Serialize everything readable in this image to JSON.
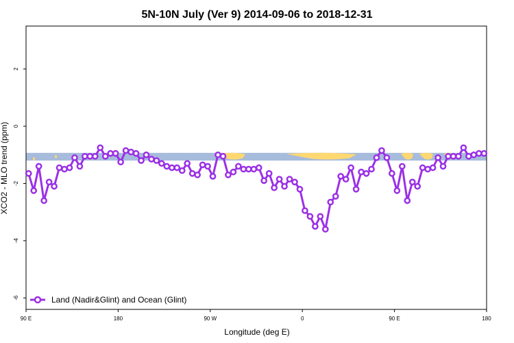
{
  "chart_data": {
    "type": "line",
    "title": "5N-10N July (Ver 9)   2014-09-06 to 2018-12-31",
    "xlabel": "Longitude (deg E)",
    "ylabel": "XCO2 - MLO trend (ppm)",
    "xlim": [
      90,
      450
    ],
    "ylim": [
      -6.4,
      3.5
    ],
    "x_ticks": [
      {
        "value": 90,
        "label": "90 E"
      },
      {
        "value": 162,
        "label": "180"
      },
      {
        "value": 234,
        "label": "90 W"
      },
      {
        "value": 306,
        "label": "0"
      },
      {
        "value": 378,
        "label": "90 E"
      },
      {
        "value": 450,
        "label": "180"
      }
    ],
    "y_ticks": [
      {
        "value": 2,
        "label": "2"
      },
      {
        "value": 0,
        "label": "0"
      },
      {
        "value": -2,
        "label": "-2"
      },
      {
        "value": -4,
        "label": "-4"
      },
      {
        "value": -6,
        "label": "-6"
      }
    ],
    "grid": false,
    "legend_position": "bottom-left",
    "land_strip": {
      "y_range": [
        -1.2,
        -0.93
      ],
      "ocean_color": "#a7bcdc",
      "land_color": "#ffd871"
    },
    "series": [
      {
        "name": "Land (Nadir&Glint) and Ocean (Glint)",
        "color": "#9b30e6",
        "x": [
          92.0,
          96.0,
          100.0,
          104.0,
          108.0,
          112.0,
          116.0,
          120.0,
          124.0,
          128.0,
          132.0,
          136.0,
          140.0,
          144.0,
          148.0,
          152.0,
          156.0,
          160.0,
          164.0,
          168.0,
          172.0,
          176.0,
          180.0,
          184.0,
          188.0,
          192.0,
          196.0,
          200.0,
          204.0,
          208.0,
          212.0,
          216.0,
          220.0,
          224.0,
          228.0,
          232.0,
          236.0,
          240.0,
          244.0,
          248.0,
          252.0,
          256.0,
          260.0,
          264.0,
          268.0,
          272.0,
          276.0,
          280.0,
          284.0,
          288.0,
          292.0,
          296.0,
          300.0,
          304.0,
          308.0,
          312.0,
          316.0,
          320.0,
          324.0,
          328.0,
          332.0,
          336.0,
          340.0,
          344.0,
          348.0,
          352.0,
          356.0,
          360.0,
          364.0,
          368.0,
          372.0,
          376.0,
          380.0,
          384.0,
          388.0,
          392.0,
          396.0,
          400.0,
          404.0,
          408.0,
          412.0,
          416.0,
          420.0,
          424.0,
          428.0,
          432.0,
          436.0,
          440.0,
          444.0,
          448.0
        ],
        "values": [
          -1.65,
          -2.25,
          -1.4,
          -2.6,
          -1.95,
          -2.1,
          -1.45,
          -1.5,
          -1.45,
          -1.1,
          -1.4,
          -1.05,
          -1.05,
          -1.05,
          -0.75,
          -1.05,
          -0.95,
          -0.95,
          -1.25,
          -0.85,
          -0.9,
          -0.95,
          -1.2,
          -1.0,
          -1.15,
          -1.2,
          -1.3,
          -1.4,
          -1.45,
          -1.45,
          -1.55,
          -1.3,
          -1.65,
          -1.7,
          -1.35,
          -1.4,
          -1.75,
          -1.0,
          -1.05,
          -1.7,
          -1.6,
          -1.4,
          -1.5,
          -1.5,
          -1.5,
          -1.45,
          -1.9,
          -1.65,
          -2.15,
          -1.85,
          -2.1,
          -1.85,
          -1.95,
          -2.2,
          -2.95,
          -3.15,
          -3.5,
          -3.15,
          -3.6,
          -2.65,
          -2.45,
          -1.75,
          -1.85,
          -1.45,
          -2.2,
          -1.6,
          -1.65,
          -1.5,
          -1.1,
          -0.85,
          -1.1,
          -1.65,
          -2.25,
          -1.4,
          -2.6,
          -1.95,
          -2.1,
          -1.45,
          -1.5,
          -1.45,
          -1.1,
          -1.4,
          -1.05,
          -1.05,
          -1.05,
          -0.75,
          -1.05,
          -1.0,
          -0.95,
          -0.95
        ]
      }
    ]
  }
}
